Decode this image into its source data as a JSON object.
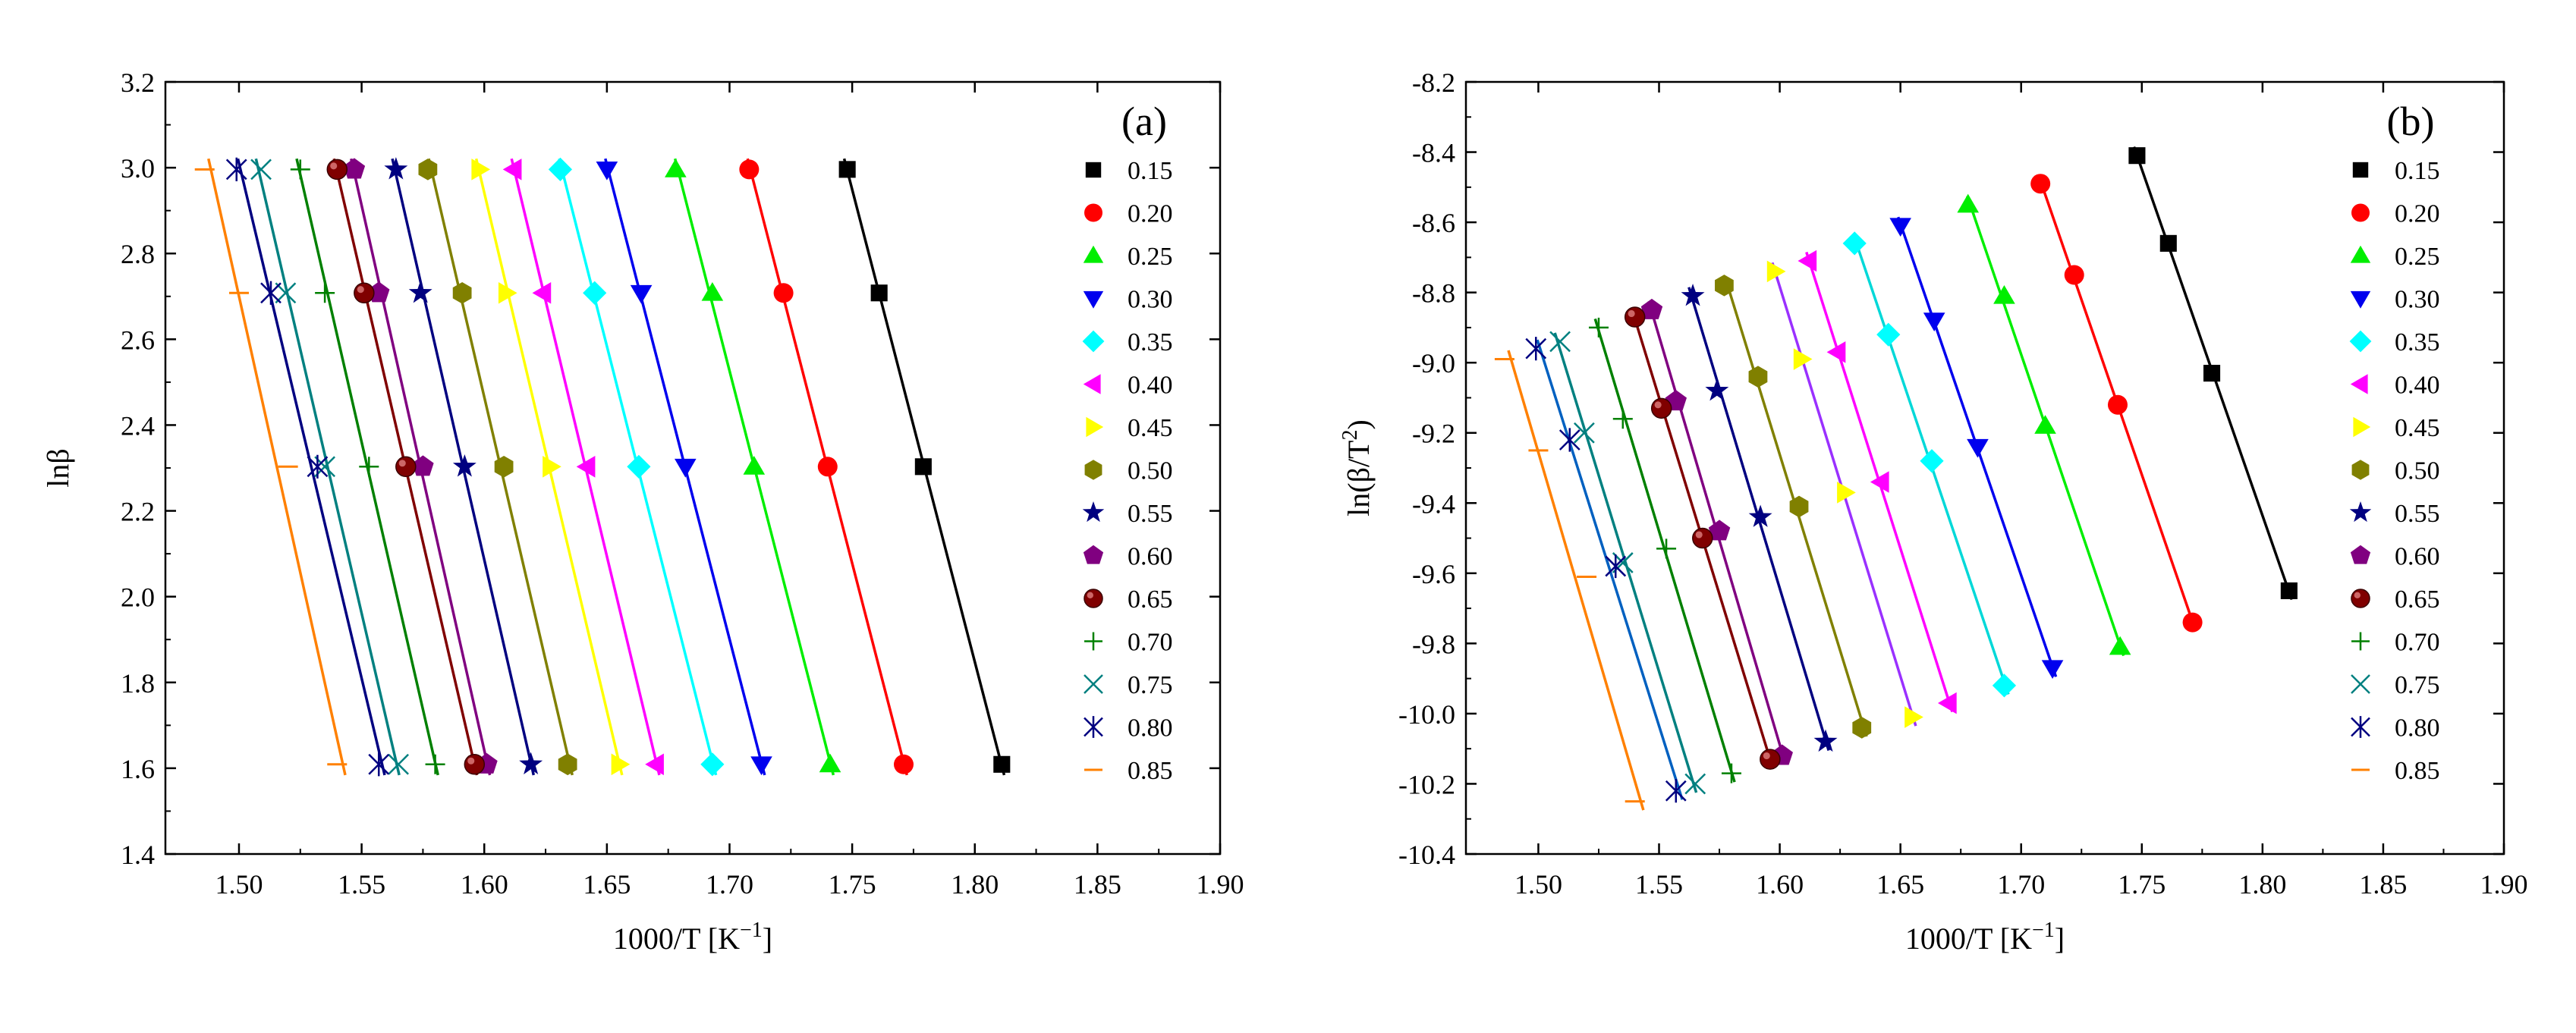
{
  "chart_data": [
    {
      "type": "scatter",
      "panel_label": "(a)",
      "xlabel": "1000/T [K",
      "xlabel_sup": "−1",
      "xlabel_end": "]",
      "ylabel": "lnβ",
      "ylabel_sup": "",
      "ylabel_end": "",
      "xlim": [
        1.47,
        1.9
      ],
      "ylim": [
        1.4,
        3.2
      ],
      "xticks": [
        1.5,
        1.55,
        1.6,
        1.65,
        1.7,
        1.75,
        1.8,
        1.85,
        1.9
      ],
      "yticks": [
        1.4,
        1.6,
        1.8,
        2.0,
        2.2,
        2.4,
        2.6,
        2.8,
        3.0,
        3.2
      ],
      "xtick_labels": [
        "1.50",
        "1.55",
        "1.60",
        "1.65",
        "1.70",
        "1.75",
        "1.80",
        "1.85",
        "1.90"
      ],
      "ytick_labels": [
        "1.4",
        "1.6",
        "1.8",
        "2.0",
        "2.2",
        "2.4",
        "2.6",
        "2.8",
        "3.0",
        "3.2"
      ],
      "y_values": [
        2.996,
        2.708,
        2.303,
        1.609
      ],
      "legend_position": "right",
      "series": [
        {
          "name": "0.15",
          "color": "#000000",
          "marker": "square",
          "x": [
            1.748,
            1.761,
            1.779,
            1.811
          ]
        },
        {
          "name": "0.20",
          "color": "#ff0000",
          "marker": "circle",
          "x": [
            1.708,
            1.722,
            1.74,
            1.771
          ]
        },
        {
          "name": "0.25",
          "color": "#00ee00",
          "marker": "triangle-up",
          "x": [
            1.678,
            1.693,
            1.71,
            1.741
          ]
        },
        {
          "name": "0.30",
          "color": "#0000ee",
          "marker": "triangle-down",
          "x": [
            1.65,
            1.664,
            1.682,
            1.713
          ]
        },
        {
          "name": "0.35",
          "color": "#00ffff",
          "marker": "diamond",
          "x": [
            1.631,
            1.645,
            1.663,
            1.693
          ]
        },
        {
          "name": "0.40",
          "color": "#ff00ff",
          "marker": "triangle-left",
          "x": [
            1.612,
            1.624,
            1.642,
            1.67
          ]
        },
        {
          "name": "0.45",
          "color": "#ffff00",
          "marker": "triangle-right",
          "x": [
            1.598,
            1.609,
            1.627,
            1.655
          ]
        },
        {
          "name": "0.50",
          "color": "#808000",
          "marker": "hexagon",
          "x": [
            1.577,
            1.591,
            1.608,
            1.634
          ]
        },
        {
          "name": "0.55",
          "color": "#000080",
          "marker": "star",
          "x": [
            1.564,
            1.574,
            1.592,
            1.619
          ]
        },
        {
          "name": "0.60",
          "color": "#800080",
          "marker": "pentagon",
          "x": [
            1.547,
            1.557,
            1.575,
            1.601
          ]
        },
        {
          "name": "0.65",
          "color": "#800000",
          "marker": "sphere",
          "x": [
            1.54,
            1.551,
            1.568,
            1.596
          ]
        },
        {
          "name": "0.70",
          "color": "#008000",
          "marker": "plus",
          "x": [
            1.525,
            1.535,
            1.553,
            1.58
          ]
        },
        {
          "name": "0.75",
          "color": "#008080",
          "marker": "x",
          "x": [
            1.509,
            1.519,
            1.535,
            1.565
          ]
        },
        {
          "name": "0.80",
          "color": "#000080",
          "marker": "asterisk",
          "x": [
            1.499,
            1.513,
            1.532,
            1.557
          ]
        },
        {
          "name": "0.85",
          "color": "#ff8000",
          "marker": "dash",
          "x": [
            1.486,
            1.5,
            1.52,
            1.54
          ]
        }
      ]
    },
    {
      "type": "scatter",
      "panel_label": "(b)",
      "xlabel": "1000/T [K",
      "xlabel_sup": "−1",
      "xlabel_end": "]",
      "ylabel": "ln(β/T",
      "ylabel_sup": "2",
      "ylabel_end": ")",
      "xlim": [
        1.47,
        1.9
      ],
      "ylim": [
        -10.4,
        -8.2
      ],
      "xticks": [
        1.5,
        1.55,
        1.6,
        1.65,
        1.7,
        1.75,
        1.8,
        1.85,
        1.9
      ],
      "yticks": [
        -10.4,
        -10.2,
        -10.0,
        -9.8,
        -9.6,
        -9.4,
        -9.2,
        -9.0,
        -8.8,
        -8.6,
        -8.4,
        -8.2
      ],
      "xtick_labels": [
        "1.50",
        "1.55",
        "1.60",
        "1.65",
        "1.70",
        "1.75",
        "1.80",
        "1.85",
        "1.90"
      ],
      "ytick_labels": [
        "-10.4",
        "-10.2",
        "-10.0",
        "-9.8",
        "-9.6",
        "-9.4",
        "-9.2",
        "-9.0",
        "-8.8",
        "-8.6",
        "-8.4",
        "-8.2"
      ],
      "legend_position": "right",
      "series": [
        {
          "name": "0.15",
          "color": "#000000",
          "marker": "square",
          "x": [
            1.748,
            1.761,
            1.779,
            1.811
          ],
          "y": [
            -8.41,
            -8.66,
            -9.03,
            -9.65
          ]
        },
        {
          "name": "0.20",
          "color": "#ff0000",
          "marker": "circle",
          "x": [
            1.708,
            1.722,
            1.74,
            1.771
          ],
          "y": [
            -8.49,
            -8.75,
            -9.12,
            -9.74
          ]
        },
        {
          "name": "0.25",
          "color": "#00ee00",
          "marker": "triangle-up",
          "x": [
            1.678,
            1.693,
            1.71,
            1.741
          ],
          "y": [
            -8.55,
            -8.81,
            -9.18,
            -9.81
          ]
        },
        {
          "name": "0.30",
          "color": "#0000ee",
          "marker": "triangle-down",
          "x": [
            1.65,
            1.664,
            1.682,
            1.713
          ],
          "y": [
            -8.61,
            -8.88,
            -9.24,
            -9.87
          ]
        },
        {
          "name": "0.35",
          "color": "#00ffff",
          "marker": "diamond",
          "x": [
            1.631,
            1.645,
            1.663,
            1.693
          ],
          "y": [
            -8.66,
            -8.92,
            -9.28,
            -9.92
          ]
        },
        {
          "name": "0.40",
          "color": "#ff00ff",
          "marker": "triangle-left",
          "x": [
            1.612,
            1.624,
            1.642,
            1.67
          ],
          "y": [
            -8.71,
            -8.97,
            -9.34,
            -9.97
          ]
        },
        {
          "name": "0.45",
          "color": "#ffff00",
          "marker": "triangle-right",
          "x": [
            1.598,
            1.609,
            1.627,
            1.655
          ],
          "y": [
            -8.74,
            -8.99,
            -9.37,
            -10.01
          ]
        },
        {
          "name": "0.50",
          "color": "#808000",
          "marker": "hexagon",
          "x": [
            1.577,
            1.591,
            1.608,
            1.634
          ],
          "y": [
            -8.78,
            -9.04,
            -9.41,
            -10.04
          ]
        },
        {
          "name": "0.55",
          "color": "#000080",
          "marker": "star",
          "x": [
            1.564,
            1.574,
            1.592,
            1.619
          ],
          "y": [
            -8.81,
            -9.08,
            -9.44,
            -10.08
          ]
        },
        {
          "name": "0.60",
          "color": "#800080",
          "marker": "pentagon",
          "x": [
            1.547,
            1.557,
            1.575,
            1.601
          ],
          "y": [
            -8.85,
            -9.11,
            -9.48,
            -10.12
          ]
        },
        {
          "name": "0.65",
          "color": "#800000",
          "marker": "sphere",
          "x": [
            1.54,
            1.551,
            1.568,
            1.596
          ],
          "y": [
            -8.87,
            -9.13,
            -9.5,
            -10.13
          ]
        },
        {
          "name": "0.70",
          "color": "#008000",
          "marker": "plus",
          "x": [
            1.525,
            1.535,
            1.553,
            1.58
          ],
          "y": [
            -8.9,
            -9.16,
            -9.53,
            -10.17
          ]
        },
        {
          "name": "0.75",
          "color": "#008080",
          "marker": "x",
          "x": [
            1.509,
            1.519,
            1.535,
            1.565
          ],
          "y": [
            -8.94,
            -9.2,
            -9.57,
            -10.2
          ]
        },
        {
          "name": "0.80",
          "color": "#000080",
          "marker": "asterisk",
          "x": [
            1.499,
            1.513,
            1.532,
            1.557
          ],
          "y": [
            -8.96,
            -9.22,
            -9.58,
            -10.22
          ]
        },
        {
          "name": "0.85",
          "color": "#ff8000",
          "marker": "dash",
          "x": [
            1.486,
            1.5,
            1.52,
            1.54
          ],
          "y": [
            -8.99,
            -9.25,
            -9.61,
            -10.25
          ]
        }
      ],
      "fit_colors": [
        "#000000",
        "#ff0000",
        "#00ee00",
        "#0000ee",
        "#00d8d8",
        "#ff00ff",
        "#9a30ff",
        "#808000",
        "#000080",
        "#800080",
        "#800000",
        "#008000",
        "#008080",
        "#0060c0",
        "#ff8000",
        "#c03080"
      ]
    }
  ]
}
